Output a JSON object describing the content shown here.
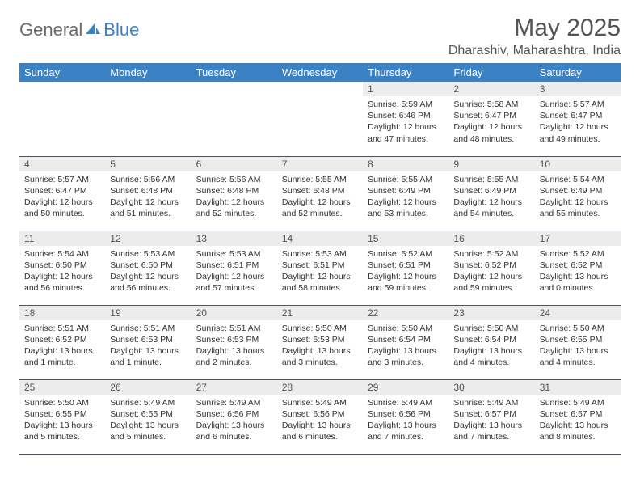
{
  "logo": {
    "general": "General",
    "blue": "Blue"
  },
  "title": "May 2025",
  "location": "Dharashiv, Maharashtra, India",
  "colors": {
    "header_bg": "#3b82c4",
    "header_fg": "#ffffff",
    "daynum_bg": "#ececec",
    "border": "#4a5568",
    "logo_gray": "#6b6b6b",
    "logo_blue": "#3b7fc4"
  },
  "weekdays": [
    "Sunday",
    "Monday",
    "Tuesday",
    "Wednesday",
    "Thursday",
    "Friday",
    "Saturday"
  ],
  "weeks": [
    [
      null,
      null,
      null,
      null,
      {
        "d": "1",
        "sr": "5:59 AM",
        "ss": "6:46 PM",
        "dl": "12 hours and 47 minutes."
      },
      {
        "d": "2",
        "sr": "5:58 AM",
        "ss": "6:47 PM",
        "dl": "12 hours and 48 minutes."
      },
      {
        "d": "3",
        "sr": "5:57 AM",
        "ss": "6:47 PM",
        "dl": "12 hours and 49 minutes."
      }
    ],
    [
      {
        "d": "4",
        "sr": "5:57 AM",
        "ss": "6:47 PM",
        "dl": "12 hours and 50 minutes."
      },
      {
        "d": "5",
        "sr": "5:56 AM",
        "ss": "6:48 PM",
        "dl": "12 hours and 51 minutes."
      },
      {
        "d": "6",
        "sr": "5:56 AM",
        "ss": "6:48 PM",
        "dl": "12 hours and 52 minutes."
      },
      {
        "d": "7",
        "sr": "5:55 AM",
        "ss": "6:48 PM",
        "dl": "12 hours and 52 minutes."
      },
      {
        "d": "8",
        "sr": "5:55 AM",
        "ss": "6:49 PM",
        "dl": "12 hours and 53 minutes."
      },
      {
        "d": "9",
        "sr": "5:55 AM",
        "ss": "6:49 PM",
        "dl": "12 hours and 54 minutes."
      },
      {
        "d": "10",
        "sr": "5:54 AM",
        "ss": "6:49 PM",
        "dl": "12 hours and 55 minutes."
      }
    ],
    [
      {
        "d": "11",
        "sr": "5:54 AM",
        "ss": "6:50 PM",
        "dl": "12 hours and 56 minutes."
      },
      {
        "d": "12",
        "sr": "5:53 AM",
        "ss": "6:50 PM",
        "dl": "12 hours and 56 minutes."
      },
      {
        "d": "13",
        "sr": "5:53 AM",
        "ss": "6:51 PM",
        "dl": "12 hours and 57 minutes."
      },
      {
        "d": "14",
        "sr": "5:53 AM",
        "ss": "6:51 PM",
        "dl": "12 hours and 58 minutes."
      },
      {
        "d": "15",
        "sr": "5:52 AM",
        "ss": "6:51 PM",
        "dl": "12 hours and 59 minutes."
      },
      {
        "d": "16",
        "sr": "5:52 AM",
        "ss": "6:52 PM",
        "dl": "12 hours and 59 minutes."
      },
      {
        "d": "17",
        "sr": "5:52 AM",
        "ss": "6:52 PM",
        "dl": "13 hours and 0 minutes."
      }
    ],
    [
      {
        "d": "18",
        "sr": "5:51 AM",
        "ss": "6:52 PM",
        "dl": "13 hours and 1 minute."
      },
      {
        "d": "19",
        "sr": "5:51 AM",
        "ss": "6:53 PM",
        "dl": "13 hours and 1 minute."
      },
      {
        "d": "20",
        "sr": "5:51 AM",
        "ss": "6:53 PM",
        "dl": "13 hours and 2 minutes."
      },
      {
        "d": "21",
        "sr": "5:50 AM",
        "ss": "6:53 PM",
        "dl": "13 hours and 3 minutes."
      },
      {
        "d": "22",
        "sr": "5:50 AM",
        "ss": "6:54 PM",
        "dl": "13 hours and 3 minutes."
      },
      {
        "d": "23",
        "sr": "5:50 AM",
        "ss": "6:54 PM",
        "dl": "13 hours and 4 minutes."
      },
      {
        "d": "24",
        "sr": "5:50 AM",
        "ss": "6:55 PM",
        "dl": "13 hours and 4 minutes."
      }
    ],
    [
      {
        "d": "25",
        "sr": "5:50 AM",
        "ss": "6:55 PM",
        "dl": "13 hours and 5 minutes."
      },
      {
        "d": "26",
        "sr": "5:49 AM",
        "ss": "6:55 PM",
        "dl": "13 hours and 5 minutes."
      },
      {
        "d": "27",
        "sr": "5:49 AM",
        "ss": "6:56 PM",
        "dl": "13 hours and 6 minutes."
      },
      {
        "d": "28",
        "sr": "5:49 AM",
        "ss": "6:56 PM",
        "dl": "13 hours and 6 minutes."
      },
      {
        "d": "29",
        "sr": "5:49 AM",
        "ss": "6:56 PM",
        "dl": "13 hours and 7 minutes."
      },
      {
        "d": "30",
        "sr": "5:49 AM",
        "ss": "6:57 PM",
        "dl": "13 hours and 7 minutes."
      },
      {
        "d": "31",
        "sr": "5:49 AM",
        "ss": "6:57 PM",
        "dl": "13 hours and 8 minutes."
      }
    ]
  ],
  "labels": {
    "sunrise": "Sunrise: ",
    "sunset": "Sunset: ",
    "daylight": "Daylight: "
  }
}
